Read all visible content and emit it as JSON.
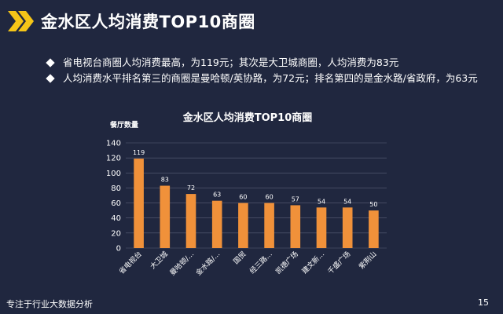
{
  "header": {
    "title": "金水区人均消费TOP10商圈",
    "accent_color": "#f5c518",
    "icon": "chevron-right-icon"
  },
  "bullets": [
    "省电视台商圈人均消费最高，为119元；其次是大卫城商圈，人均消费为83元",
    "人均消费水平排名第三的商圈是曼哈顿/英协路，为72元；排名第四的是金水路/省政府，为63元"
  ],
  "footer": {
    "left": "专注于行业大数据分析",
    "page_number": "15"
  },
  "chart_data": {
    "type": "bar",
    "title": "金水区人均消费TOP10商圈",
    "ylabel": "餐厅数量",
    "xlabel": "",
    "categories": [
      "省电视台",
      "大卫城",
      "曼哈顿/...",
      "金水路/...",
      "国贸",
      "经三路...",
      "凯德广场",
      "建文新...",
      "千盛广场",
      "紫荆山"
    ],
    "values": [
      119,
      83,
      72,
      63,
      60,
      60,
      57,
      54,
      54,
      50
    ],
    "ylim": [
      0,
      140
    ],
    "yticks": [
      0,
      20,
      40,
      60,
      80,
      100,
      120,
      140
    ],
    "grid": true,
    "bar_color": "#f0913a",
    "data_labels": true
  }
}
